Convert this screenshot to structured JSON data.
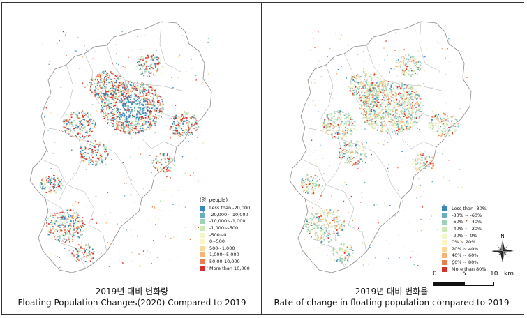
{
  "left_panel": {
    "caption_kr": "2019년 대비 변화량",
    "caption_en": "Floating Population Changes(2020) Compared to 2019",
    "legend": {
      "unit": "(명, people)",
      "items": [
        {
          "label": "Less than -20,000",
          "color": "#3a88b8"
        },
        {
          "label": "-20,000~-10,000",
          "color": "#6aaec2"
        },
        {
          "label": "-10,000~-1,000",
          "color": "#9fd0b8"
        },
        {
          "label": "-1,000~-500",
          "color": "#cde9b4"
        },
        {
          "label": "-500~0",
          "color": "#f1f7c8"
        },
        {
          "label": "0~500",
          "color": "#fdf4c2"
        },
        {
          "label": "500~1,000",
          "color": "#fbd89a"
        },
        {
          "label": "1,000~5,000",
          "color": "#f6b574"
        },
        {
          "label": "50,00-10,000",
          "color": "#ea7c50"
        },
        {
          "label": "More than 10,000",
          "color": "#d7302a"
        }
      ]
    }
  },
  "right_panel": {
    "caption_kr": "2019년 대비 변화율",
    "caption_en": "Rate of change in floating population compared to 2019",
    "legend": {
      "items": [
        {
          "label": "Less than -80%",
          "color": "#3a88b8"
        },
        {
          "label": "-80% ~ -60%",
          "color": "#6aaec2"
        },
        {
          "label": "-60% ~ -40%",
          "color": "#9fd0b8"
        },
        {
          "label": "-40% ~ -20%",
          "color": "#cde9b4"
        },
        {
          "label": "-20% ~ 0%",
          "color": "#f1f7c8"
        },
        {
          "label": "0% ~ 20%",
          "color": "#fdf4c2"
        },
        {
          "label": "20% ~ 40%",
          "color": "#fbd89a"
        },
        {
          "label": "40% ~ 60%",
          "color": "#f6b574"
        },
        {
          "label": "60% ~ 80%",
          "color": "#ea7c50"
        },
        {
          "label": "More than 80%",
          "color": "#d7302a"
        }
      ]
    }
  },
  "scale_bar": {
    "ticks": [
      "0",
      "5",
      "10"
    ],
    "unit": "km"
  },
  "north_arrow": {
    "label": "N",
    "icon": "compass-rose-icon"
  }
}
